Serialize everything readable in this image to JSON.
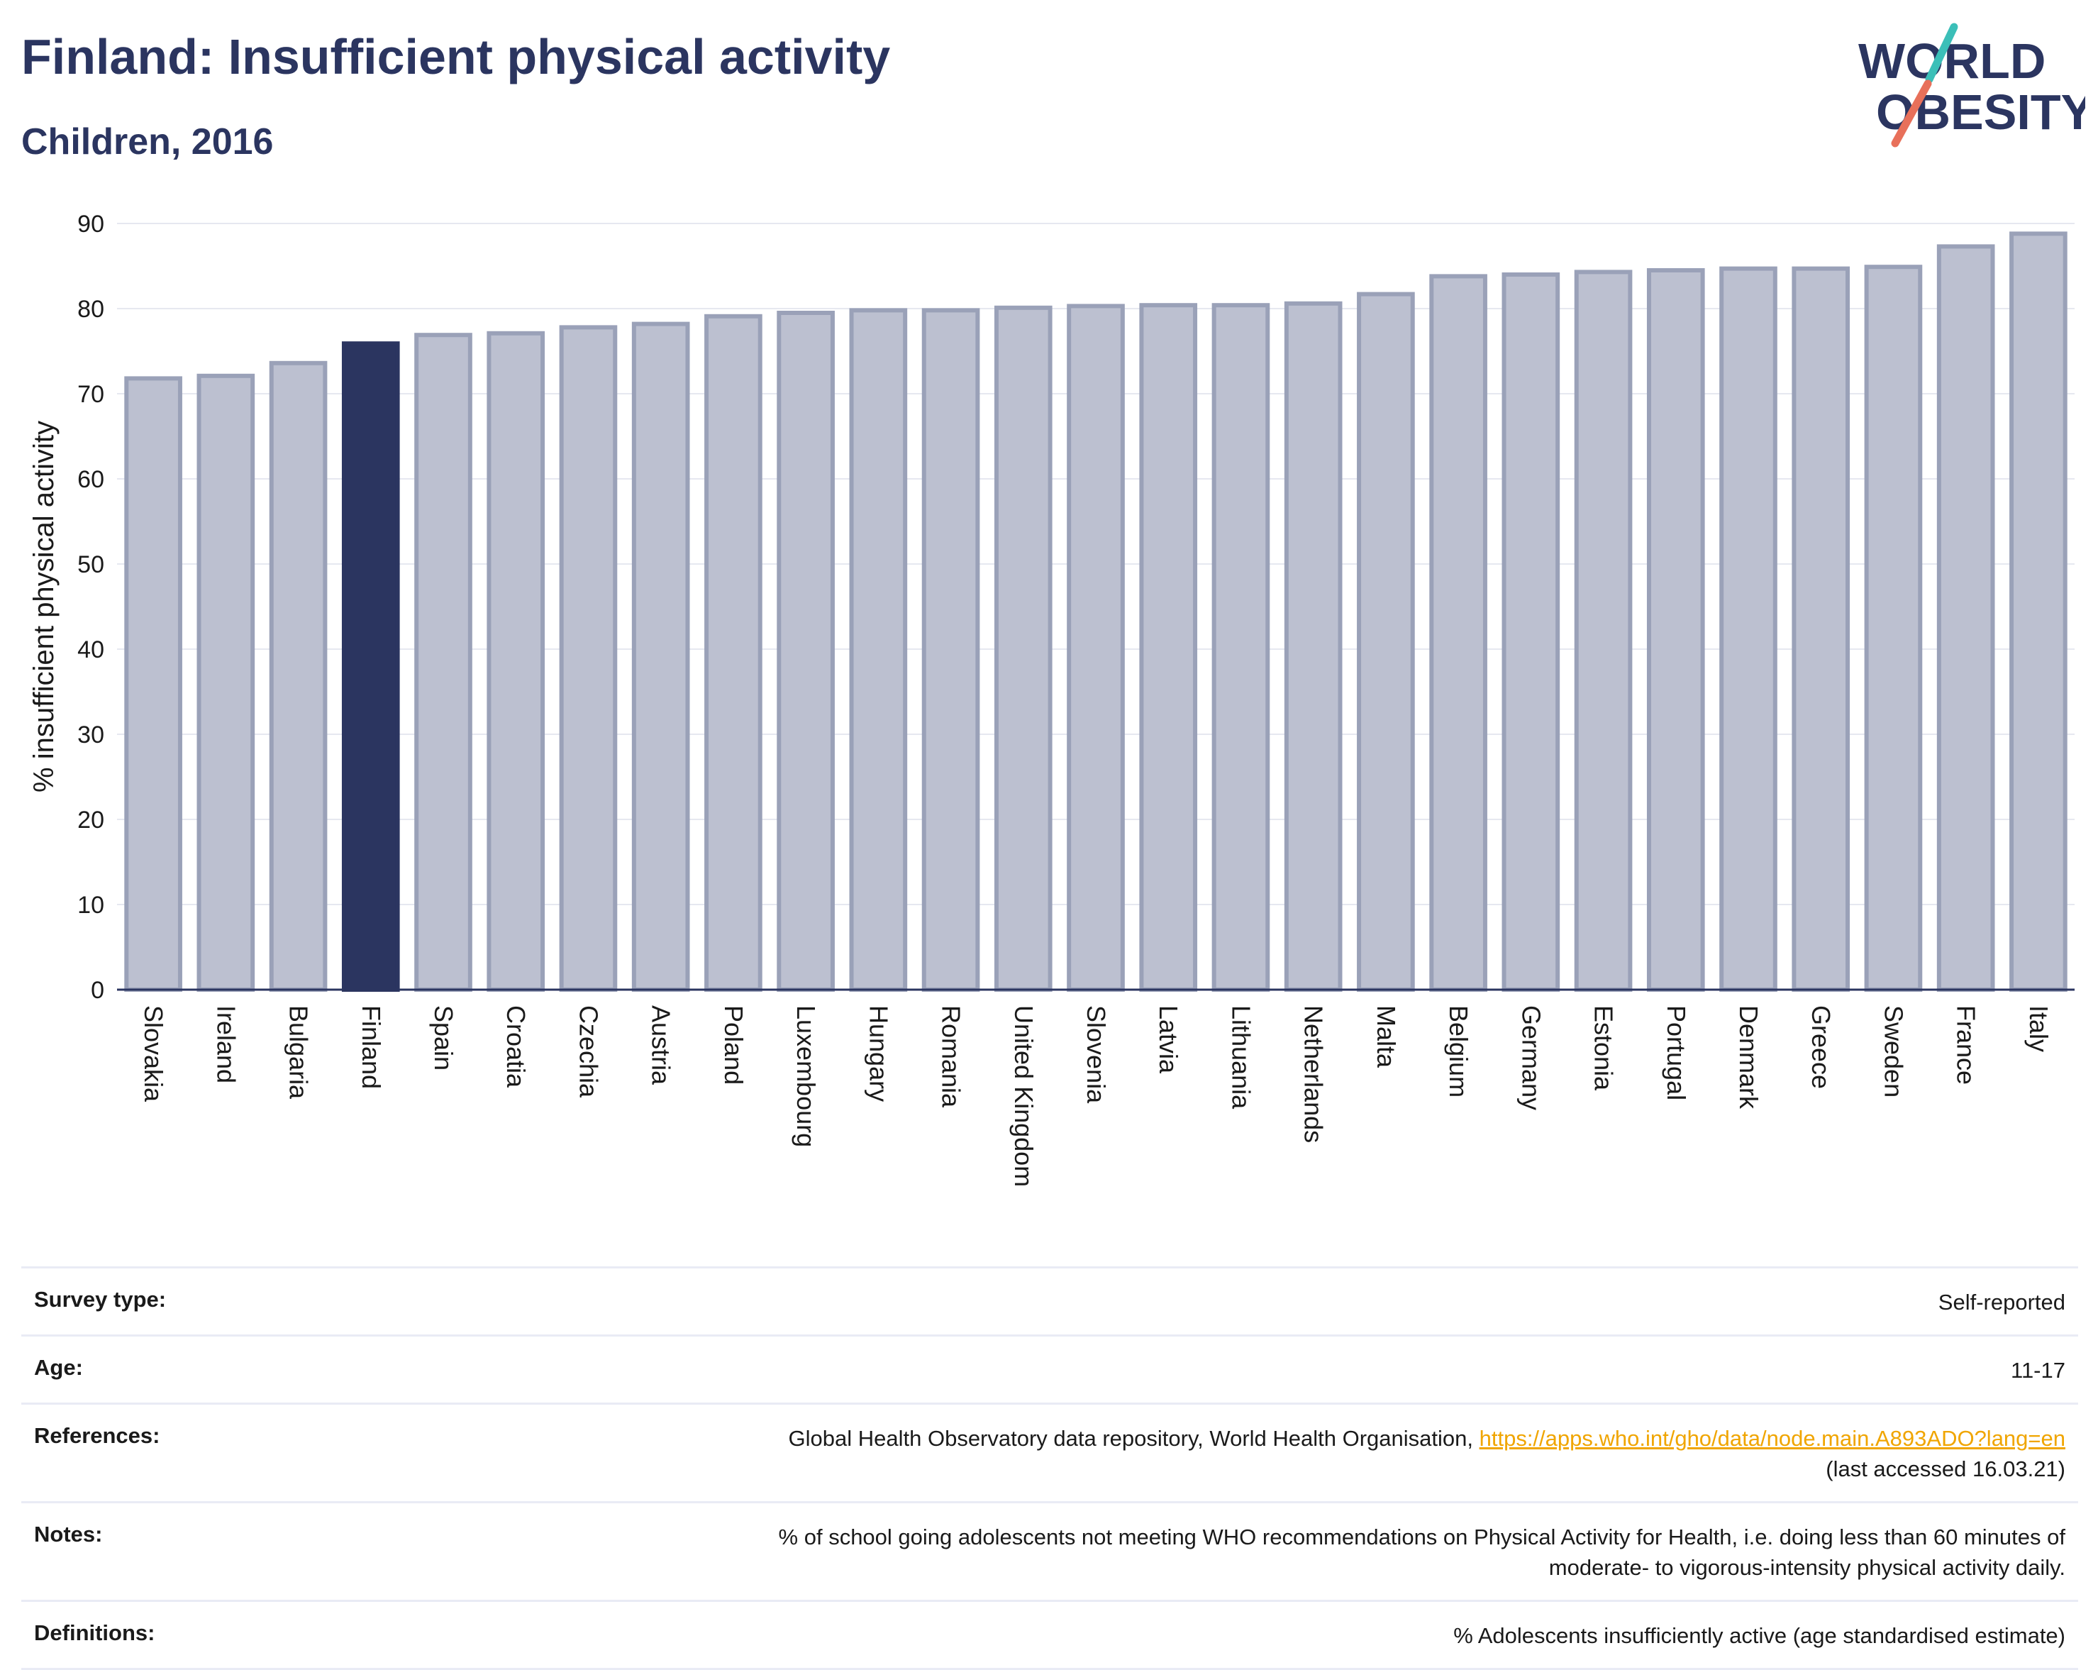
{
  "header": {
    "title": "Finland: Insufficient physical activity",
    "subtitle": "Children, 2016"
  },
  "logo": {
    "line1": "WORLD",
    "line2": "OBESITY"
  },
  "colors": {
    "highlight": "#2b3560",
    "bar": "#bcc0d0",
    "bar_border": "#9aa1b8",
    "grid": "#e6e8f0",
    "text": "#2b3560",
    "logo_teal": "#3bbfb8",
    "logo_coral": "#e8705a"
  },
  "chart_data": {
    "type": "bar",
    "ylabel": "% insufficient physical activity",
    "ylim": [
      0,
      90
    ],
    "yticks": [
      0,
      10,
      20,
      30,
      40,
      50,
      60,
      70,
      80,
      90
    ],
    "highlight": "Finland",
    "categories": [
      "Slovakia",
      "Ireland",
      "Bulgaria",
      "Finland",
      "Spain",
      "Croatia",
      "Czechia",
      "Austria",
      "Poland",
      "Luxembourg",
      "Hungary",
      "Romania",
      "United Kingdom",
      "Slovenia",
      "Latvia",
      "Lithuania",
      "Netherlands",
      "Malta",
      "Belgium",
      "Germany",
      "Estonia",
      "Portugal",
      "Denmark",
      "Greece",
      "Sweden",
      "France",
      "Italy"
    ],
    "values": [
      71.8,
      72.1,
      73.6,
      75.9,
      76.9,
      77.1,
      77.8,
      78.2,
      79.1,
      79.5,
      79.8,
      79.8,
      80.1,
      80.3,
      80.4,
      80.4,
      80.6,
      81.7,
      83.8,
      84.0,
      84.3,
      84.5,
      84.7,
      84.7,
      84.9,
      87.3,
      88.8
    ]
  },
  "meta": {
    "survey_type": {
      "label": "Survey type:",
      "value": "Self-reported"
    },
    "age": {
      "label": "Age:",
      "value": "11-17"
    },
    "references": {
      "label": "References:",
      "text": "Global Health Observatory data repository, World Health Organisation, ",
      "link": "https://apps.who.int/gho/data/node.main.A893ADO?lang=en",
      "suffix": "(last accessed 16.03.21)"
    },
    "notes": {
      "label": "Notes:",
      "line1": "% of school going adolescents not meeting WHO recommendations on Physical Activity for Health, i.e. doing less than 60 minutes of",
      "line2": "moderate- to vigorous-intensity physical activity daily."
    },
    "definitions": {
      "label": "Definitions:",
      "value": "% Adolescents insufficiently active (age standardised estimate)"
    }
  }
}
